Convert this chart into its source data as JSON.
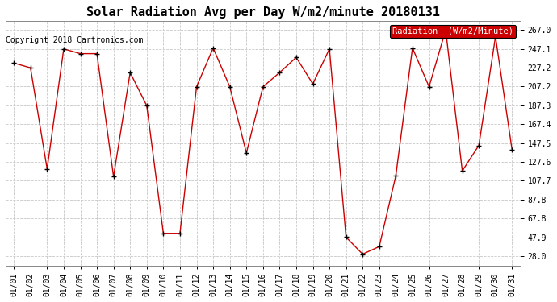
{
  "title": "Solar Radiation Avg per Day W/m2/minute 20180131",
  "copyright_text": "Copyright 2018 Cartronics.com",
  "legend_label": "Radiation  (W/m2/Minute)",
  "dates": [
    "01/01",
    "01/02",
    "01/03",
    "01/04",
    "01/05",
    "01/06",
    "01/07",
    "01/08",
    "01/09",
    "01/10",
    "01/11",
    "01/12",
    "01/13",
    "01/14",
    "01/15",
    "01/16",
    "01/17",
    "01/18",
    "01/19",
    "01/20",
    "01/21",
    "01/22",
    "01/23",
    "01/24",
    "01/25",
    "01/26",
    "01/27",
    "01/28",
    "01/29",
    "01/30",
    "01/31"
  ],
  "values": [
    232,
    227,
    120,
    247,
    242,
    242,
    112,
    222,
    187,
    52,
    52,
    207,
    248,
    207,
    137,
    207,
    222,
    238,
    210,
    247,
    48,
    30,
    38,
    113,
    248,
    207,
    267,
    118,
    145,
    260,
    140
  ],
  "yticks": [
    28.0,
    47.9,
    67.8,
    87.8,
    107.7,
    127.6,
    147.5,
    167.4,
    187.3,
    207.2,
    227.2,
    247.1,
    267.0
  ],
  "ymin": 18.0,
  "ymax": 277.0,
  "line_color": "#cc0000",
  "marker": "+",
  "marker_color": "#000000",
  "grid_color": "#c8c8c8",
  "bg_color": "#ffffff",
  "plot_bg_color": "#ffffff",
  "legend_bg": "#cc0000",
  "legend_text_color": "#ffffff",
  "title_fontsize": 11,
  "copyright_fontsize": 7,
  "tick_fontsize": 7,
  "legend_fontsize": 7.5
}
